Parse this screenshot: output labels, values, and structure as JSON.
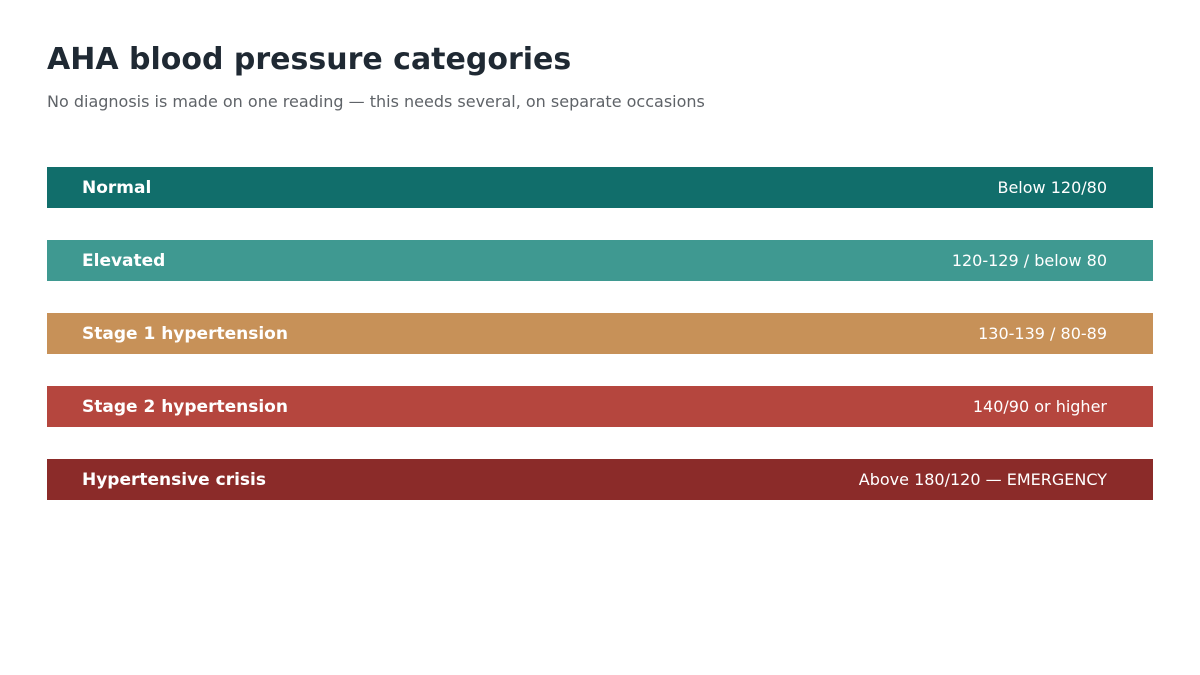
{
  "header": {
    "title": "AHA blood pressure categories",
    "subtitle": "No diagnosis is made on one reading — this needs several, on separate occasions"
  },
  "categories": [
    {
      "name": "Normal",
      "range": "Below 120/80",
      "color": "#116e6b"
    },
    {
      "name": "Elevated",
      "range": "120-129 / below 80",
      "color": "#3f9991"
    },
    {
      "name": "Stage 1 hypertension",
      "range": "130-139 / 80-89",
      "color": "#c79158"
    },
    {
      "name": "Stage 2 hypertension",
      "range": "140/90 or higher",
      "color": "#b5463e"
    },
    {
      "name": "Hypertensive crisis",
      "range": "Above 180/120 — EMERGENCY",
      "color": "#8b2b29"
    }
  ]
}
